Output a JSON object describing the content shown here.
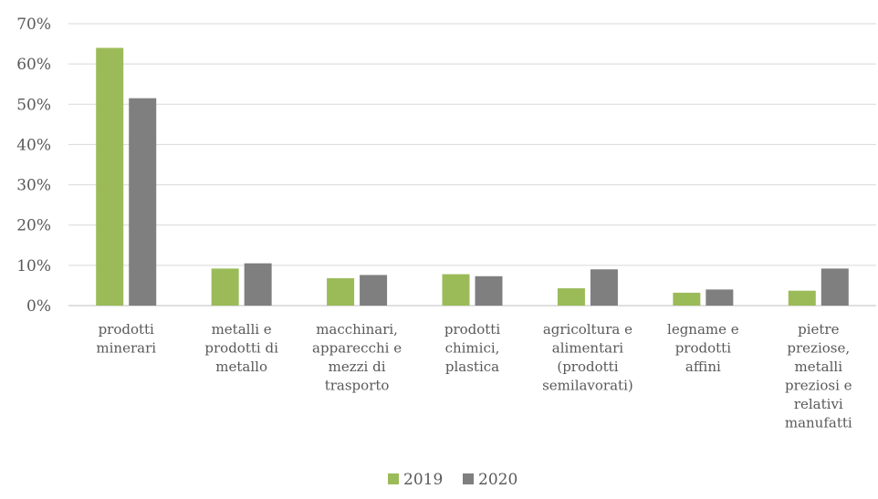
{
  "chart_data": {
    "type": "bar",
    "categories": [
      [
        "prodotti",
        "minerari"
      ],
      [
        "metalli e",
        "prodotti di",
        "metallo"
      ],
      [
        "macchinari,",
        "apparecchi e",
        "mezzi di",
        "trasporto"
      ],
      [
        "prodotti",
        "chimici,",
        "plastica"
      ],
      [
        "agricoltura e",
        "alimentari",
        "(prodotti",
        "semilavorati)"
      ],
      [
        "legname e",
        "prodotti",
        "affini"
      ],
      [
        "pietre",
        "preziose,",
        "metalli",
        "preziosi e",
        "relativi",
        "manufatti"
      ]
    ],
    "series": [
      {
        "name": "2019",
        "color": "#9bbb59",
        "values": [
          0.64,
          0.092,
          0.068,
          0.078,
          0.043,
          0.032,
          0.037
        ]
      },
      {
        "name": "2020",
        "color": "#7f7f7f",
        "values": [
          0.515,
          0.105,
          0.076,
          0.073,
          0.09,
          0.04,
          0.092
        ]
      }
    ],
    "y_ticks": [
      "0%",
      "10%",
      "20%",
      "30%",
      "40%",
      "50%",
      "60%",
      "70%"
    ],
    "ylim": [
      0,
      0.7
    ],
    "title": "",
    "xlabel": "",
    "ylabel": "",
    "grid": true,
    "legend_position": "bottom-center"
  }
}
